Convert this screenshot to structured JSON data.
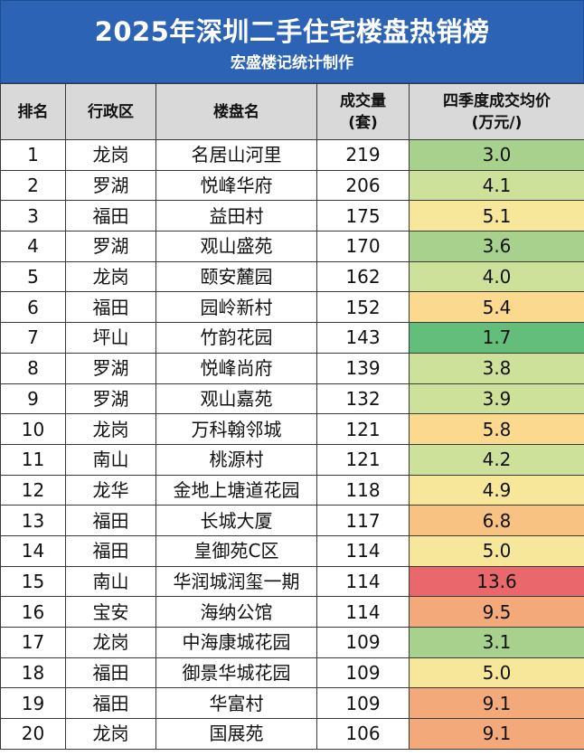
{
  "title": "2025年深圳二手住宅楼盘热销榜",
  "subtitle": "宏盛楼记统计制作",
  "headers": {
    "rank": "排名",
    "district": "行政区",
    "estate": "楼盘名",
    "volume_line1": "成交量",
    "volume_line2": "(套)",
    "price_line1": "四季度成交均价",
    "price_line2": "(万元/)"
  },
  "price_colors": {
    "very_low": "#63be7b",
    "low": "#a9d18e",
    "mid_low": "#cde19a",
    "mid": "#f6e79b",
    "mid_high": "#fbd98e",
    "high": "#f8c382",
    "very_high": "#f4a97a",
    "extreme": "#e9686b"
  },
  "rows": [
    {
      "rank": "1",
      "district": "龙岗",
      "estate": "名居山河里",
      "volume": "219",
      "price": "3.0"
    },
    {
      "rank": "2",
      "district": "罗湖",
      "estate": "悦峰华府",
      "volume": "206",
      "price": "4.1"
    },
    {
      "rank": "3",
      "district": "福田",
      "estate": "益田村",
      "volume": "175",
      "price": "5.1"
    },
    {
      "rank": "4",
      "district": "罗湖",
      "estate": "观山盛苑",
      "volume": "170",
      "price": "3.6"
    },
    {
      "rank": "5",
      "district": "龙岗",
      "estate": "颐安麓园",
      "volume": "162",
      "price": "4.0"
    },
    {
      "rank": "6",
      "district": "福田",
      "estate": "园岭新村",
      "volume": "152",
      "price": "5.4"
    },
    {
      "rank": "7",
      "district": "坪山",
      "estate": "竹韵花园",
      "volume": "143",
      "price": "1.7"
    },
    {
      "rank": "8",
      "district": "罗湖",
      "estate": "悦峰尚府",
      "volume": "139",
      "price": "3.8"
    },
    {
      "rank": "9",
      "district": "罗湖",
      "estate": "观山嘉苑",
      "volume": "132",
      "price": "3.9"
    },
    {
      "rank": "10",
      "district": "龙岗",
      "estate": "万科翰邻城",
      "volume": "121",
      "price": "5.8"
    },
    {
      "rank": "11",
      "district": "南山",
      "estate": "桃源村",
      "volume": "121",
      "price": "4.2"
    },
    {
      "rank": "12",
      "district": "龙华",
      "estate": "金地上塘道花园",
      "volume": "118",
      "price": "4.9"
    },
    {
      "rank": "13",
      "district": "福田",
      "estate": "长城大厦",
      "volume": "117",
      "price": "6.8"
    },
    {
      "rank": "14",
      "district": "福田",
      "estate": "皇御苑C区",
      "volume": "114",
      "price": "5.0"
    },
    {
      "rank": "15",
      "district": "南山",
      "estate": "华润城润玺一期",
      "volume": "114",
      "price": "13.6"
    },
    {
      "rank": "16",
      "district": "宝安",
      "estate": "海纳公馆",
      "volume": "114",
      "price": "9.5"
    },
    {
      "rank": "17",
      "district": "龙岗",
      "estate": "中海康城花园",
      "volume": "109",
      "price": "3.1"
    },
    {
      "rank": "18",
      "district": "福田",
      "estate": "御景华城花园",
      "volume": "109",
      "price": "5.0"
    },
    {
      "rank": "19",
      "district": "福田",
      "estate": "华富村",
      "volume": "109",
      "price": "9.1"
    },
    {
      "rank": "20",
      "district": "龙岗",
      "estate": "国展苑",
      "volume": "106",
      "price": "9.1"
    }
  ]
}
